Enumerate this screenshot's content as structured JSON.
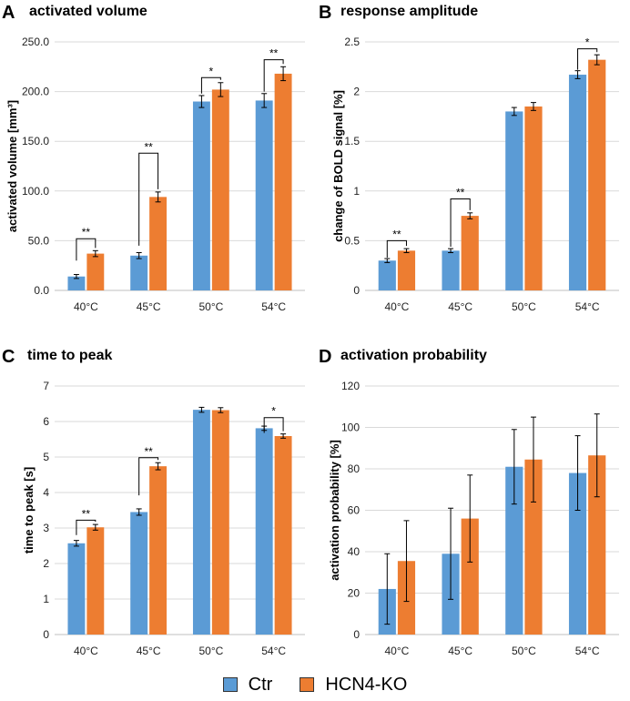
{
  "legend": {
    "ctr_label": "Ctr",
    "ko_label": "HCN4-KO"
  },
  "colors": {
    "ctr": "#5b9bd5",
    "ko": "#ed7d31",
    "grid": "#d9d9d9",
    "axis": "#bfbfbf",
    "error": "#000000"
  },
  "chart_data": [
    {
      "type": "bar",
      "letter": "A",
      "title": "activated volume",
      "xlabel": "",
      "ylabel": "activated volume [mm³]",
      "categories": [
        "40°C",
        "45°C",
        "50°C",
        "54°C"
      ],
      "ylim": [
        0,
        250
      ],
      "yticks": [
        0,
        50,
        100,
        150,
        200,
        250
      ],
      "ytick_labels": [
        "0.0",
        "50.0",
        "100.0",
        "150.0",
        "200.0",
        "250.0"
      ],
      "grid": true,
      "series": [
        {
          "name": "Ctr",
          "values": [
            14,
            35,
            190,
            191
          ],
          "errors": [
            2,
            3,
            6,
            7
          ]
        },
        {
          "name": "HCN4-KO",
          "values": [
            37,
            94,
            202,
            218
          ],
          "errors": [
            3,
            5,
            7,
            7
          ]
        }
      ],
      "significance": [
        {
          "category": 0,
          "label": "**",
          "bracket_bottom": 30,
          "bracket_top": 52
        },
        {
          "category": 1,
          "label": "**",
          "bracket_bottom": 45,
          "bracket_top": 138
        },
        {
          "category": 2,
          "label": "*",
          "bracket_bottom": 198,
          "bracket_top": 214
        },
        {
          "category": 3,
          "label": "**",
          "bracket_bottom": 200,
          "bracket_top": 232
        }
      ]
    },
    {
      "type": "bar",
      "letter": "B",
      "title": "response amplitude",
      "xlabel": "",
      "ylabel": "change of BOLD signal [%]",
      "categories": [
        "40°C",
        "45°C",
        "50°C",
        "54°C"
      ],
      "ylim": [
        0,
        2.5
      ],
      "yticks": [
        0,
        0.5,
        1,
        1.5,
        2,
        2.5
      ],
      "ytick_labels": [
        "0",
        "0.5",
        "1",
        "1.5",
        "2",
        "2.5"
      ],
      "grid": true,
      "series": [
        {
          "name": "Ctr",
          "values": [
            0.3,
            0.4,
            1.8,
            2.17
          ],
          "errors": [
            0.02,
            0.02,
            0.04,
            0.04
          ]
        },
        {
          "name": "HCN4-KO",
          "values": [
            0.4,
            0.75,
            1.85,
            2.32
          ],
          "errors": [
            0.02,
            0.03,
            0.04,
            0.05
          ]
        }
      ],
      "significance": [
        {
          "category": 0,
          "label": "**",
          "bracket_bottom": 0.33,
          "bracket_top": 0.5
        },
        {
          "category": 1,
          "label": "**",
          "bracket_bottom": 0.44,
          "bracket_top": 0.92
        },
        {
          "category": 3,
          "label": "*",
          "bracket_bottom": 2.22,
          "bracket_top": 2.43
        }
      ]
    },
    {
      "type": "bar",
      "letter": "C",
      "title": "time to peak",
      "xlabel": "",
      "ylabel": "time to  peak [s]",
      "categories": [
        "40°C",
        "45°C",
        "50°C",
        "54°C"
      ],
      "ylim": [
        0,
        7
      ],
      "yticks": [
        0,
        1,
        2,
        3,
        4,
        5,
        6,
        7
      ],
      "ytick_labels": [
        "0",
        "1",
        "2",
        "3",
        "4",
        "5",
        "6",
        "7"
      ],
      "grid": true,
      "series": [
        {
          "name": "Ctr",
          "values": [
            2.57,
            3.45,
            6.33,
            5.81
          ],
          "errors": [
            0.08,
            0.09,
            0.07,
            0.06
          ]
        },
        {
          "name": "HCN4-KO",
          "values": [
            3.02,
            4.74,
            6.32,
            5.59
          ],
          "errors": [
            0.08,
            0.1,
            0.07,
            0.06
          ]
        }
      ],
      "significance": [
        {
          "category": 0,
          "label": "**",
          "bracket_bottom": 2.8,
          "bracket_top": 3.22
        },
        {
          "category": 1,
          "label": "**",
          "bracket_bottom": 3.92,
          "bracket_top": 4.98
        },
        {
          "category": 3,
          "label": "*",
          "bracket_bottom": 5.68,
          "bracket_top": 6.11
        }
      ]
    },
    {
      "type": "bar",
      "letter": "D",
      "title": "activation probability",
      "xlabel": "",
      "ylabel": "activation probability [%]",
      "categories": [
        "40°C",
        "45°C",
        "50°C",
        "54°C"
      ],
      "ylim": [
        0,
        120
      ],
      "yticks": [
        0,
        20,
        40,
        60,
        80,
        100,
        120
      ],
      "ytick_labels": [
        "0",
        "20",
        "40",
        "60",
        "80",
        "100",
        "120"
      ],
      "grid": true,
      "series": [
        {
          "name": "Ctr",
          "values": [
            22,
            39,
            81,
            78
          ],
          "errors": [
            17,
            22,
            18,
            18
          ]
        },
        {
          "name": "HCN4-KO",
          "values": [
            35.5,
            56,
            84.5,
            86.5
          ],
          "errors": [
            19.5,
            21,
            20.5,
            20
          ]
        }
      ],
      "significance": []
    }
  ]
}
